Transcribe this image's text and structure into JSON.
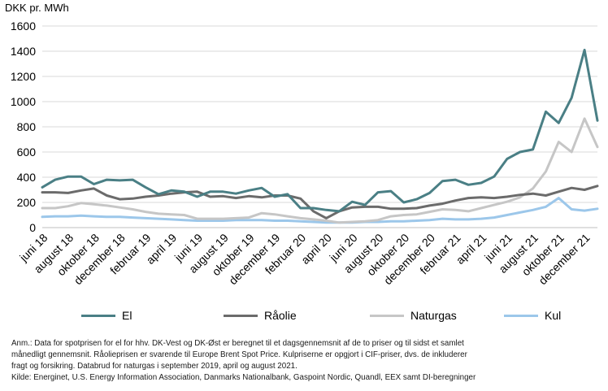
{
  "chart_data": {
    "type": "line",
    "ylabel": "DKK pr. MWh",
    "ylim": [
      0,
      1600
    ],
    "yticks": [
      0,
      200,
      400,
      600,
      800,
      1000,
      1200,
      1400,
      1600
    ],
    "grid": "horizontal",
    "legend_position": "bottom",
    "x": [
      "juni 18",
      "juli 18",
      "august 18",
      "september 18",
      "oktober 18",
      "november 18",
      "december 18",
      "januar 19",
      "februar 19",
      "marts 19",
      "april 19",
      "maj 19",
      "juni 19",
      "juli 19",
      "august 19",
      "september 19",
      "oktober 19",
      "november 19",
      "december 19",
      "januar 20",
      "februar 20",
      "marts 20",
      "april 20",
      "maj 20",
      "juni 20",
      "juli 20",
      "august 20",
      "september 20",
      "oktober 20",
      "november 20",
      "december 20",
      "januar 21",
      "februar 21",
      "marts 21",
      "april 21",
      "maj 21",
      "juni 21",
      "juli 21",
      "august 21",
      "september 21",
      "oktober 21",
      "november 21",
      "december 21",
      "januar 22"
    ],
    "tick_labels": [
      "juni 18",
      "august 18",
      "oktober 18",
      "december 18",
      "februar 19",
      "april 19",
      "juni 19",
      "august 19",
      "oktober 19",
      "december 19",
      "februar 20",
      "april 20",
      "juni 20",
      "august 20",
      "oktober 20",
      "december 20",
      "februar 21",
      "april 21",
      "juni 21",
      "august 21",
      "oktober 21",
      "december 21"
    ],
    "series": [
      {
        "name": "El",
        "color": "#4a7f85",
        "values": [
          320,
          380,
          405,
          405,
          345,
          380,
          375,
          380,
          320,
          265,
          295,
          285,
          245,
          285,
          285,
          270,
          295,
          315,
          245,
          265,
          155,
          155,
          140,
          130,
          205,
          180,
          280,
          290,
          200,
          225,
          275,
          370,
          380,
          340,
          355,
          405,
          545,
          600,
          620,
          920,
          830,
          1030,
          1410,
          850
        ]
      },
      {
        "name": "Råolie",
        "color": "#6b6b6b",
        "values": [
          280,
          280,
          275,
          295,
          310,
          255,
          225,
          230,
          245,
          255,
          270,
          280,
          285,
          245,
          250,
          235,
          250,
          240,
          255,
          255,
          230,
          130,
          75,
          130,
          160,
          165,
          165,
          150,
          150,
          155,
          175,
          190,
          215,
          235,
          240,
          235,
          245,
          260,
          270,
          255,
          285,
          315,
          300,
          330
        ]
      },
      {
        "name": "Naturgas",
        "color": "#c6c6c6",
        "values": [
          155,
          155,
          170,
          195,
          185,
          175,
          160,
          145,
          125,
          110,
          105,
          100,
          70,
          70,
          70,
          75,
          80,
          115,
          105,
          90,
          75,
          65,
          55,
          40,
          45,
          50,
          60,
          90,
          100,
          105,
          125,
          145,
          140,
          130,
          155,
          180,
          205,
          240,
          310,
          445,
          680,
          600,
          865,
          640
        ]
      },
      {
        "name": "Kul",
        "color": "#9cc7ea",
        "values": [
          85,
          90,
          90,
          95,
          90,
          85,
          85,
          80,
          75,
          70,
          65,
          60,
          55,
          55,
          55,
          60,
          60,
          60,
          55,
          55,
          50,
          45,
          40,
          40,
          40,
          45,
          45,
          50,
          50,
          55,
          60,
          70,
          65,
          65,
          70,
          80,
          100,
          120,
          140,
          165,
          235,
          145,
          135,
          150
        ]
      }
    ]
  },
  "notes": {
    "line1": "Anm.: Data for spotprisen for el for hhv. DK-Vest og DK-Øst er beregnet til et dagsgennemsnit af de to priser og til sidst et samlet",
    "line2": "månedligt gennemsnit. Råolieprisen er svarende til Europe Brent Spot Price. Kulpriserne er opgjort i CIF-priser, dvs. de inkluderer",
    "line3": "fragt og forsikring. Databrud for naturgas i september 2019, april og august 2021.",
    "line4": "Kilde: Energinet, U.S. Energy Information Association, Danmarks Nationalbank, Gaspoint Nordic, Quandl, EEX samt DI-beregninger"
  }
}
